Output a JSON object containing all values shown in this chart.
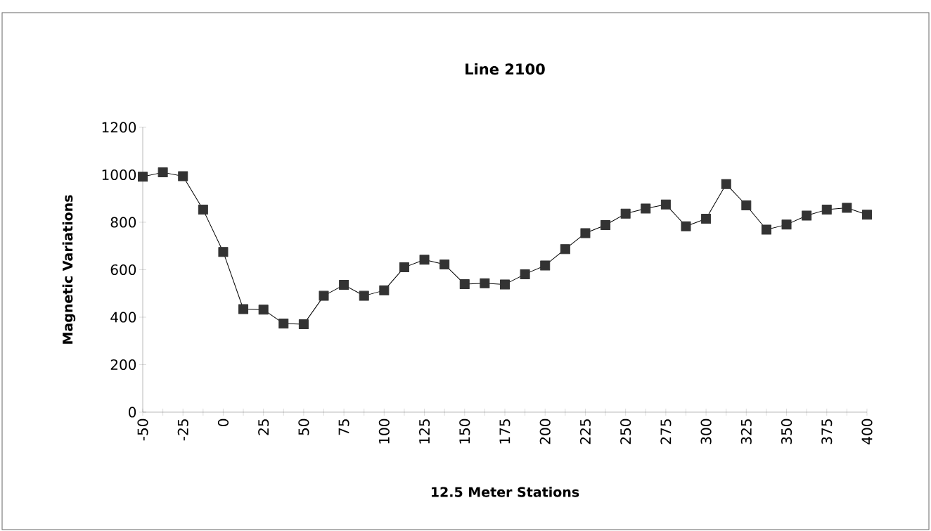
{
  "chart_data": {
    "type": "line",
    "title": "Line 2100",
    "xlabel": "12.5 Meter Stations",
    "ylabel": "Magnetic Variations",
    "x": [
      -50,
      -37.5,
      -25,
      -12.5,
      0,
      12.5,
      25,
      37.5,
      50,
      62.5,
      75,
      87.5,
      100,
      112.5,
      125,
      137.5,
      150,
      162.5,
      175,
      187.5,
      200,
      212.5,
      225,
      237.5,
      250,
      262.5,
      275,
      287.5,
      300,
      312.5,
      325,
      337.5,
      350,
      362.5,
      375,
      387.5,
      400
    ],
    "series": [
      {
        "color": "#333333",
        "values": [
          992,
          1010,
          994,
          853,
          675,
          434,
          432,
          373,
          370,
          490,
          536,
          490,
          513,
          610,
          642,
          622,
          539,
          543,
          538,
          581,
          618,
          687,
          754,
          788,
          836,
          858,
          875,
          783,
          815,
          961,
          871,
          769,
          790,
          828,
          853,
          861,
          832
        ]
      }
    ],
    "xlim": [
      -50,
      400
    ],
    "ylim": [
      0,
      1200
    ],
    "xticks": [
      -50,
      {
        "value": -37.5,
        "label": null
      },
      -25,
      {
        "value": -12.5,
        "label": null
      },
      0,
      {
        "value": 12.5,
        "label": null
      },
      25,
      {
        "value": 37.5,
        "label": null
      },
      50,
      {
        "value": 62.5,
        "label": null
      },
      75,
      {
        "value": 87.5,
        "label": null
      },
      100,
      {
        "value": 112.5,
        "label": null
      },
      125,
      {
        "value": 137.5,
        "label": null
      },
      150,
      {
        "value": 162.5,
        "label": null
      },
      175,
      {
        "value": 187.5,
        "label": null
      },
      200,
      {
        "value": 212.5,
        "label": null
      },
      225,
      {
        "value": 237.5,
        "label": null
      },
      250,
      {
        "value": 262.5,
        "label": null
      },
      275,
      {
        "value": 287.5,
        "label": null
      },
      300,
      {
        "value": 312.5,
        "label": null
      },
      325,
      {
        "value": 337.5,
        "label": null
      },
      350,
      {
        "value": 362.5,
        "label": null
      },
      375,
      {
        "value": 387.5,
        "label": null
      },
      400
    ],
    "yticks": [
      0,
      200,
      400,
      600,
      800,
      1000,
      1200
    ],
    "marker": "square",
    "line_style": "solid",
    "grid": false
  }
}
